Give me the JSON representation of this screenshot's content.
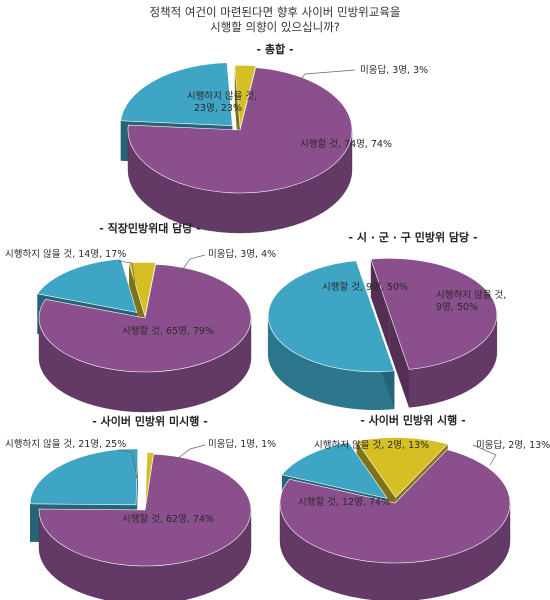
{
  "title": {
    "line1": "정책적 여건이 마련된다면 향후 사이버 민방위교육을",
    "line2": "시행할 의향이 있으십니까?"
  },
  "colors": {
    "implement": "#8a4f8c",
    "not_implement": "#3fa5c4",
    "no_response": "#d6bf25"
  },
  "chart_data": [
    {
      "type": "pie",
      "title": "- 총합 -",
      "categories": [
        "시행할 것",
        "시행하지 않을 것",
        "미응답"
      ],
      "values": [
        74,
        23,
        3
      ],
      "counts": [
        74,
        23,
        3
      ],
      "labels": [
        "시행할 것, 74명, 74%",
        "시행하지 않을 것,\n23명, 23%",
        "미응답, 3명, 3%"
      ]
    },
    {
      "type": "pie",
      "title": "- 직장민방위대 담당 -",
      "categories": [
        "시행할 것",
        "시행하지 않을 것",
        "미응답"
      ],
      "values": [
        79,
        17,
        4
      ],
      "counts": [
        65,
        14,
        3
      ],
      "labels": [
        "시행할 것, 65명, 79%",
        "시행하지 않을 것, 14명, 17%",
        "미응답, 3명, 4%"
      ]
    },
    {
      "type": "pie",
      "title": "- 시 · 군 · 구 민방위 담당 -",
      "categories": [
        "시행할 것",
        "시행하지 않을 것"
      ],
      "values": [
        50,
        50
      ],
      "counts": [
        9,
        9
      ],
      "labels": [
        "시행할 것, 9명, 50%",
        "시행하지 않을 것,\n9명, 50%"
      ]
    },
    {
      "type": "pie",
      "title": "- 사이버 민방위 미시행 -",
      "categories": [
        "시행할 것",
        "시행하지 않을 것",
        "미응답"
      ],
      "values": [
        74,
        25,
        1
      ],
      "counts": [
        62,
        21,
        1
      ],
      "labels": [
        "시행할 것, 62명, 74%",
        "시행하지 않을 것, 21명, 25%",
        "미응답, 1명, 1%"
      ]
    },
    {
      "type": "pie",
      "title": "- 사이버 민방위 시행 -",
      "categories": [
        "시행할 것",
        "시행하지 않을 것",
        "미응답"
      ],
      "values": [
        74,
        13,
        13
      ],
      "counts": [
        12,
        2,
        2
      ],
      "labels": [
        "시행할 것, 12명, 74%",
        "시행하지 않을 것, 2명, 13%",
        "미응답, 2명, 13%"
      ]
    }
  ]
}
